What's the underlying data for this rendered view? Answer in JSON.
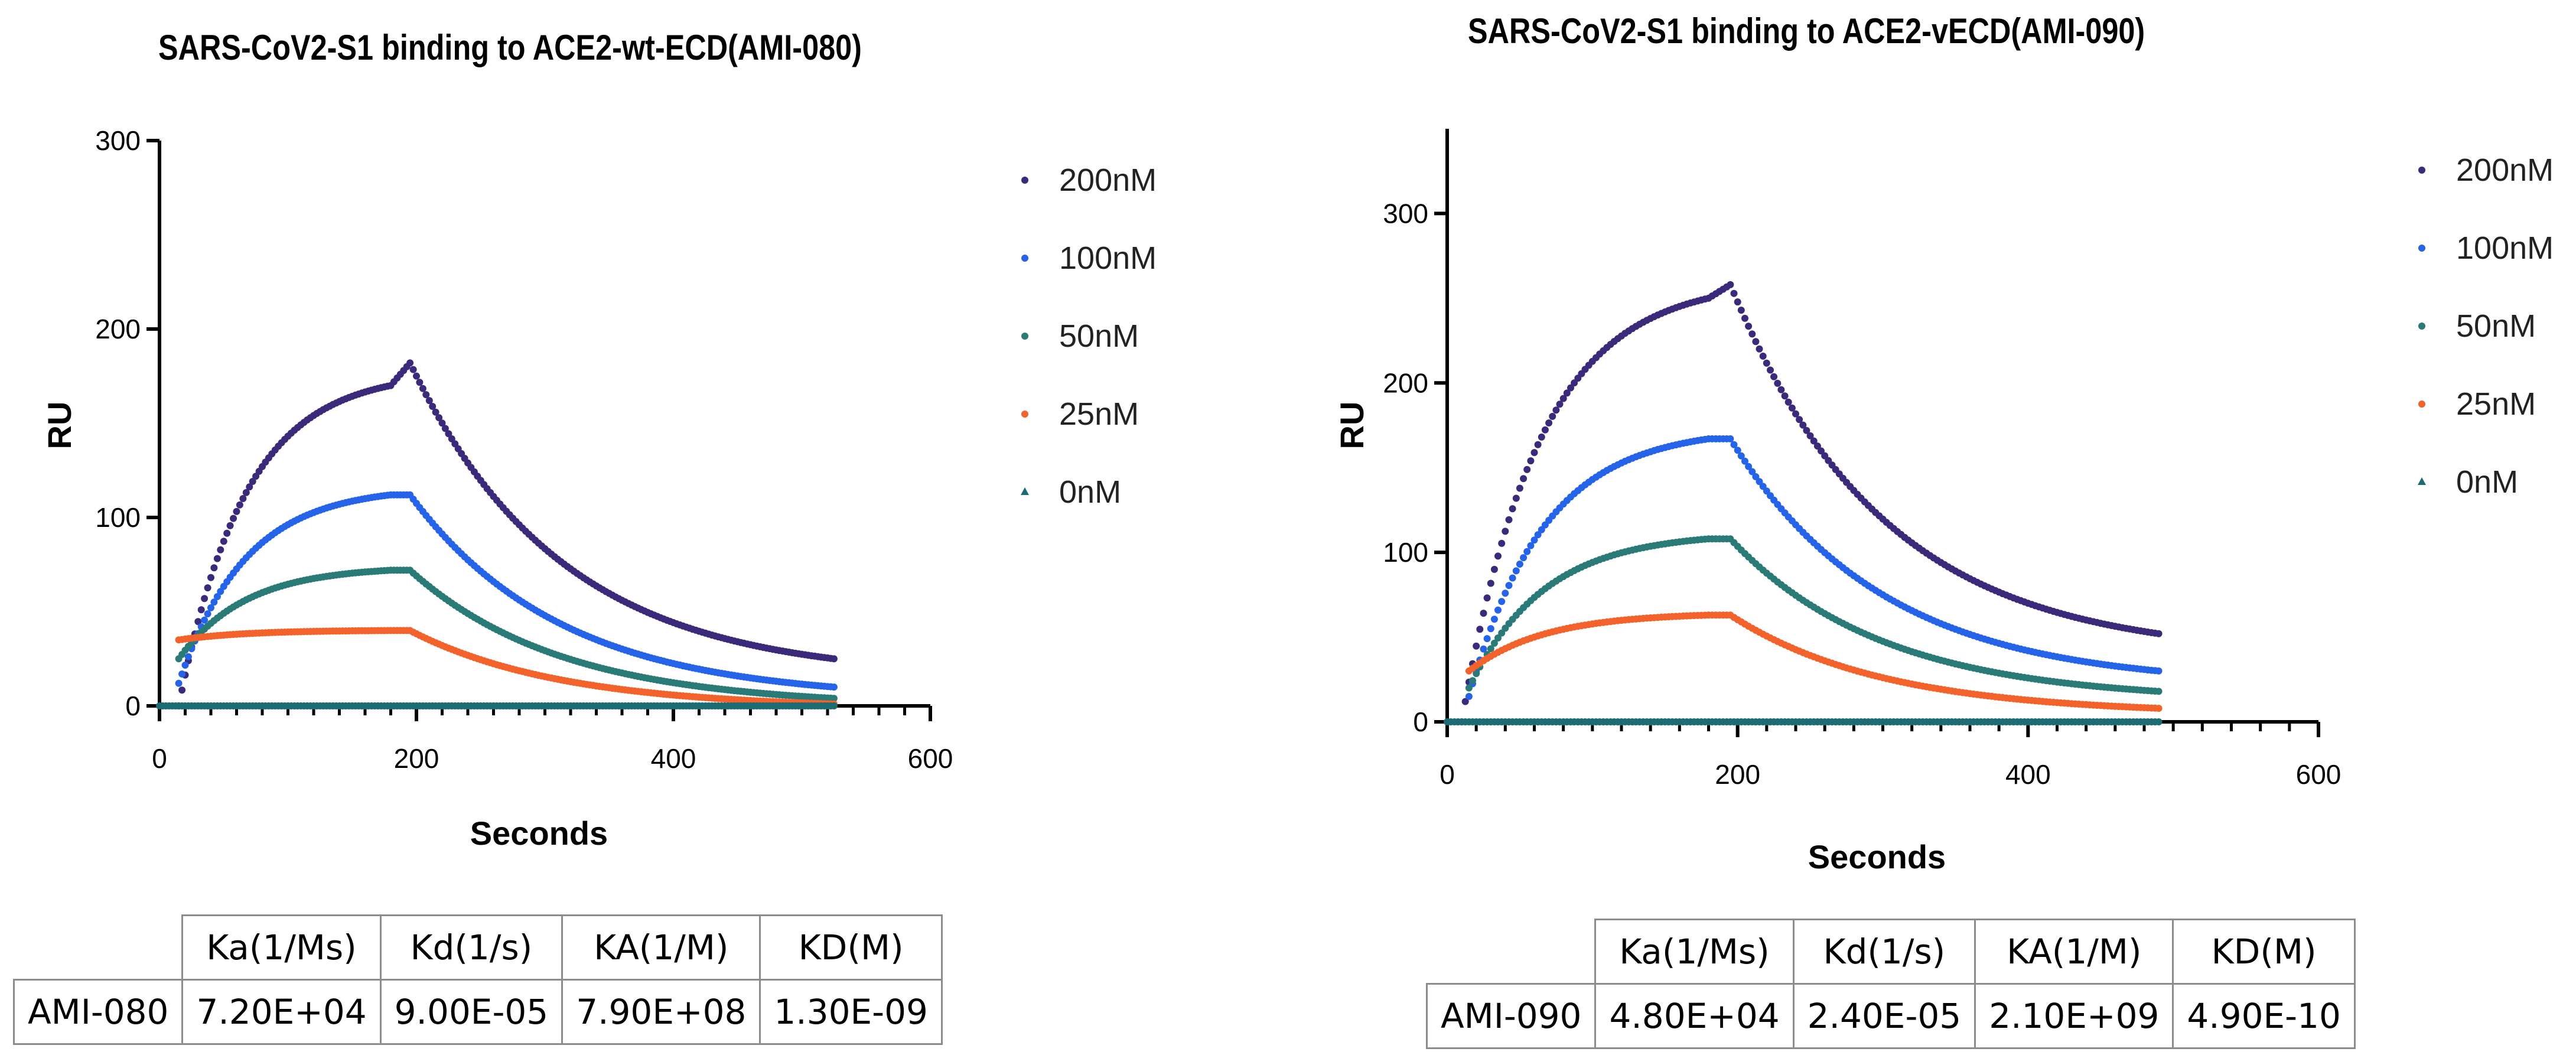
{
  "charts": [
    {
      "title": "SARS-CoV2-S1 binding to ACE2-wt-ECD(AMI-080)",
      "chart_data": {
        "type": "scatter",
        "title": "SARS-CoV2-S1 binding to ACE2-wt-ECD(AMI-080)",
        "xlabel": "Seconds",
        "ylabel": "RU",
        "xlim": [
          0,
          600
        ],
        "ylim": [
          0,
          300
        ],
        "x_ticks": [
          "0",
          "200",
          "400",
          "600"
        ],
        "y_ticks": [
          "0",
          "100",
          "200",
          "300"
        ],
        "legend_position": "right",
        "association_end_s": 180,
        "injection_spike_s": 195,
        "end_s": 525,
        "series": [
          {
            "name": "200nM",
            "color": "#3b2a7a",
            "start_s": 15,
            "start_ru": 0,
            "plateau_ru": 170,
            "spike_ru": 182,
            "end_ru": 25
          },
          {
            "name": "100nM",
            "color": "#2563e8",
            "start_s": 15,
            "start_ru": 12,
            "plateau_ru": 112,
            "spike_ru": 112,
            "end_ru": 10
          },
          {
            "name": "50nM",
            "color": "#2a7a78",
            "start_s": 15,
            "start_ru": 25,
            "plateau_ru": 72,
            "spike_ru": 72,
            "end_ru": 4
          },
          {
            "name": "25nM",
            "color": "#f2622a",
            "start_s": 15,
            "start_ru": 35,
            "plateau_ru": 40,
            "spike_ru": 40,
            "end_ru": 1
          },
          {
            "name": "0nM",
            "color": "#1d6b73",
            "start_s": 0,
            "start_ru": 0,
            "plateau_ru": 0,
            "spike_ru": 0,
            "end_ru": 0
          }
        ]
      },
      "table": {
        "headers": [
          "Ka(1/Ms)",
          "Kd(1/s)",
          "KA(1/M)",
          "KD(M)"
        ],
        "row_label": "AMI-080",
        "values": [
          "7.20E+04",
          "9.00E-05",
          "7.90E+08",
          "1.30E-09"
        ]
      }
    },
    {
      "title": "SARS-CoV2-S1 binding to ACE2-vECD(AMI-090)",
      "chart_data": {
        "type": "scatter",
        "title": "SARS-CoV2-S1 binding to ACE2-vECD(AMI-090)",
        "xlabel": "Seconds",
        "ylabel": "RU",
        "xlim": [
          0,
          600
        ],
        "ylim": [
          0,
          350
        ],
        "x_ticks": [
          "0",
          "200",
          "400",
          "600"
        ],
        "y_ticks": [
          "0",
          "100",
          "200",
          "300"
        ],
        "legend_position": "right",
        "association_end_s": 180,
        "injection_spike_s": 195,
        "end_s": 490,
        "series": [
          {
            "name": "200nM",
            "color": "#3b2a7a",
            "start_s": 10,
            "start_ru": 0,
            "plateau_ru": 250,
            "spike_ru": 258,
            "end_ru": 52
          },
          {
            "name": "100nM",
            "color": "#2563e8",
            "start_s": 15,
            "start_ru": 15,
            "plateau_ru": 167,
            "spike_ru": 167,
            "end_ru": 30
          },
          {
            "name": "50nM",
            "color": "#2a7a78",
            "start_s": 15,
            "start_ru": 20,
            "plateau_ru": 108,
            "spike_ru": 108,
            "end_ru": 18
          },
          {
            "name": "25nM",
            "color": "#f2622a",
            "start_s": 15,
            "start_ru": 30,
            "plateau_ru": 63,
            "spike_ru": 63,
            "end_ru": 8
          },
          {
            "name": "0nM",
            "color": "#1d6b73",
            "start_s": 0,
            "start_ru": 0,
            "plateau_ru": 0,
            "spike_ru": 0,
            "end_ru": 0
          }
        ]
      },
      "table": {
        "headers": [
          "Ka(1/Ms)",
          "Kd(1/s)",
          "KA(1/M)",
          "KD(M)"
        ],
        "row_label": "AMI-090",
        "values": [
          "4.80E+04",
          "2.40E-05",
          "2.10E+09",
          "4.90E-10"
        ]
      }
    }
  ]
}
